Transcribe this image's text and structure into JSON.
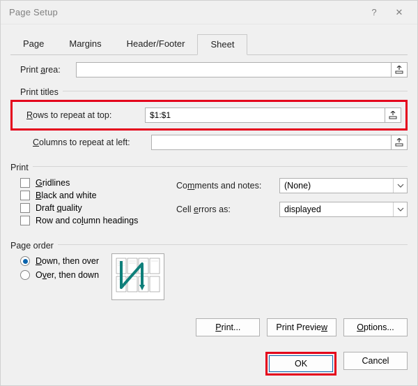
{
  "window": {
    "title": "Page Setup",
    "help": "?",
    "close": "✕"
  },
  "tabs": {
    "page": "Page",
    "margins": "Margins",
    "headerfooter": "Header/Footer",
    "sheet": "Sheet",
    "active": "sheet"
  },
  "print_area": {
    "label": "Print area:",
    "hotkey_index": 6,
    "value": ""
  },
  "print_titles": {
    "group": "Print titles",
    "rows_label": "Rows to repeat at top:",
    "rows_hotkey_index": 0,
    "rows_value": "$1:$1",
    "cols_label": "Columns to repeat at left:",
    "cols_hotkey_index": 0,
    "cols_value": ""
  },
  "print": {
    "group": "Print",
    "gridlines": "Gridlines",
    "gridlines_hk": 0,
    "bw": "Black and white",
    "bw_hk": 0,
    "draft": "Draft quality",
    "draft_hk": 6,
    "rowcol": "Row and column headings",
    "rowcol_hk": 10,
    "comments_label": "Comments and notes:",
    "comments_hk": 2,
    "comments_value": "(None)",
    "cellerr_label": "Cell errors as:",
    "cellerr_hk": 5,
    "cellerr_value": "displayed"
  },
  "page_order": {
    "group": "Page order",
    "down": "Down, then over",
    "down_hk": 0,
    "over": "Over, then down",
    "over_hk": 1,
    "selected": "down"
  },
  "buttons": {
    "print": "Print...",
    "print_hk": 0,
    "preview": "Print Preview",
    "preview_hk": 12,
    "options": "Options...",
    "options_hk": 0,
    "ok": "OK",
    "cancel": "Cancel"
  },
  "colors": {
    "highlight": "#e4001b",
    "accent": "#0a64ad",
    "teal": "#0f7f7a"
  }
}
